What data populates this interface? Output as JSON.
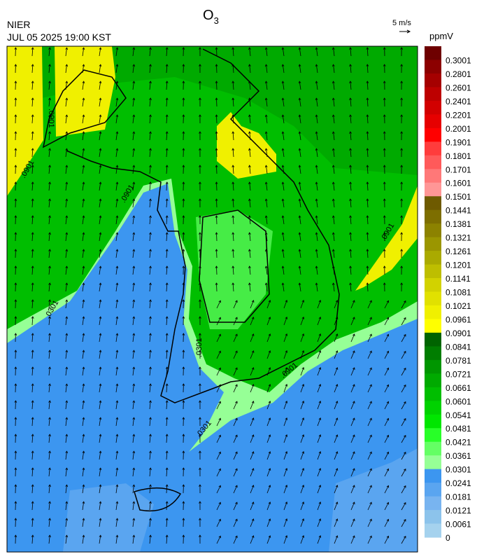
{
  "header": {
    "title": {
      "text": "O",
      "subscript": "3"
    },
    "agency": "NIER",
    "datetime": "JUL 05 2025 19:00 KST",
    "wind_scale": "5 m/s",
    "unit": "ppmV"
  },
  "colorbar": {
    "ticks": [
      0.3001,
      0.2801,
      0.2601,
      0.2401,
      0.2201,
      0.2001,
      0.1901,
      0.1801,
      0.1701,
      0.1601,
      0.1501,
      0.1441,
      0.1381,
      0.1321,
      0.1261,
      0.1201,
      0.1141,
      0.1081,
      0.1021,
      0.0961,
      0.0901,
      0.0841,
      0.0781,
      0.0721,
      0.0661,
      0.0601,
      0.0541,
      0.0481,
      0.0421,
      0.0361,
      0.0301,
      0.0241,
      0.0181,
      0.0121,
      0.0061,
      0
    ],
    "colors": [
      "#6e0000",
      "#8c0000",
      "#a50000",
      "#bd0000",
      "#d20000",
      "#e60000",
      "#ff0000",
      "#ff3c3c",
      "#ff5a5a",
      "#ff7878",
      "#ff9696",
      "#6e5a00",
      "#7d6e00",
      "#8c8200",
      "#9b9600",
      "#aaaa00",
      "#bebe00",
      "#d2d200",
      "#e1e100",
      "#f0f000",
      "#ffff00",
      "#006400",
      "#007d00",
      "#009600",
      "#00aa00",
      "#00be00",
      "#00d200",
      "#00e600",
      "#28ff28",
      "#64ff64",
      "#96ff96",
      "#3c96f0",
      "#5aa5f0",
      "#78b4f0",
      "#8cc3eb",
      "#a5d2ee"
    ]
  },
  "contour_labels": [
    ".0901",
    ".0901",
    ".0901",
    ".0301",
    ".0301",
    ".0901",
    ".0301",
    ".0901"
  ]
}
